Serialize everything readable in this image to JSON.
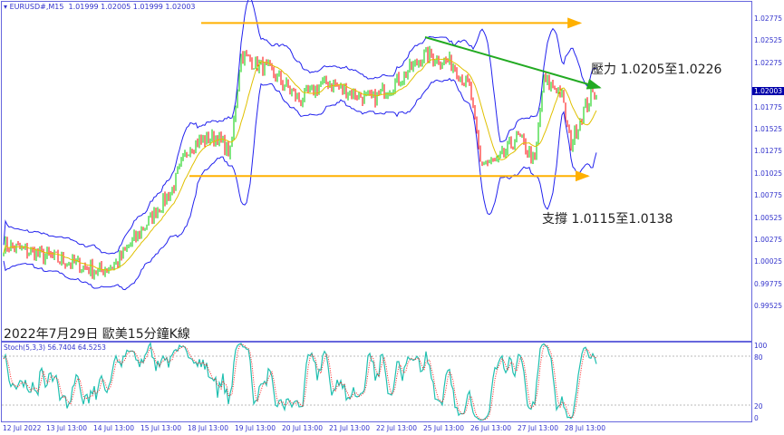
{
  "header": {
    "symbol": "EURUSD#,M15",
    "ohlc": "1.01999 1.02005 1.01999 1.02003"
  },
  "title": "2022年7月29日 歐美15分鐘K線",
  "annotations": {
    "resistance": "壓力 1.0205至1.0226",
    "support": "支撐 1.0115至1.0138"
  },
  "indicator": {
    "label": "Stoch(5,3,3) 56.7404 64.5253",
    "levels": [
      "100",
      "80",
      "20",
      "0"
    ]
  },
  "colors": {
    "bull": "#00cc00",
    "bear": "#ff0000",
    "bands": "#2222ee",
    "levels": "#ffb000",
    "trend": "#22aa22",
    "stoch_main": "#20c0b0",
    "stoch_signal": "#ff2020"
  },
  "chart_data": {
    "type": "candlestick",
    "symbol": "EURUSD#",
    "timeframe": "M15",
    "current_price": "1.02003",
    "y_ticks": [
      "1.02775",
      "1.02525",
      "1.02275",
      "1.01775",
      "1.01525",
      "1.01275",
      "1.01025",
      "1.00775",
      "1.00525",
      "1.00275",
      "1.00025",
      "0.99775",
      "0.99525"
    ],
    "x_ticks": [
      "12 Jul 2022",
      "13 Jul 13:00",
      "14 Jul 13:00",
      "15 Jul 13:00",
      "18 Jul 13:00",
      "19 Jul 13:00",
      "20 Jul 13:00",
      "21 Jul 13:00",
      "22 Jul 13:00",
      "25 Jul 13:00",
      "26 Jul 13:00",
      "27 Jul 13:00",
      "28 Jul 13:00"
    ],
    "ylim": [
      0.9945,
      1.03
    ],
    "approx_path": [
      [
        "12 Jul 15:00",
        1.0022
      ],
      [
        "13 Jul 07:00",
        1.0012
      ],
      [
        "14 Jul 01:00",
        1.0002
      ],
      [
        "14 Jul 15:00",
        0.9992
      ],
      [
        "15 Jul 00:00",
        1.0002
      ],
      [
        "15 Jul 14:00",
        1.0043
      ],
      [
        "18 Jul 04:00",
        1.0084
      ],
      [
        "18 Jul 13:00",
        1.0135
      ],
      [
        "19 Jul 03:00",
        1.0145
      ],
      [
        "19 Jul 10:00",
        1.0125
      ],
      [
        "19 Jul 15:00",
        1.0237
      ],
      [
        "20 Jul 07:00",
        1.0217
      ],
      [
        "20 Jul 21:00",
        1.0186
      ],
      [
        "21 Jul 11:00",
        1.0207
      ],
      [
        "21 Jul 20:00",
        1.0197
      ],
      [
        "22 Jul 10:00",
        1.0186
      ],
      [
        "22 Jul 23:00",
        1.0207
      ],
      [
        "25 Jul 13:00",
        1.0237
      ],
      [
        "26 Jul 03:00",
        1.0227
      ],
      [
        "26 Jul 12:00",
        1.0197
      ],
      [
        "26 Jul 17:00",
        1.0115
      ],
      [
        "27 Jul 02:00",
        1.0115
      ],
      [
        "27 Jul 12:00",
        1.0145
      ],
      [
        "27 Jul 21:00",
        1.0115
      ],
      [
        "28 Jul 01:00",
        1.0207
      ],
      [
        "28 Jul 10:00",
        1.0197
      ],
      [
        "28 Jul 15:00",
        1.0135
      ],
      [
        "28 Jul 22:00",
        1.0176
      ],
      [
        "29 Jul 05:00",
        1.02
      ]
    ],
    "lines": [
      {
        "kind": "horizontal",
        "price": 1.0273,
        "from": "18 Jul 19:00",
        "to": "28 Jul 20:00",
        "color": "#ffb000"
      },
      {
        "kind": "horizontal",
        "price": 1.01,
        "from": "18 Jul 13:00",
        "to": "29 Jul 00:00",
        "color": "#ffb000"
      },
      {
        "kind": "trend",
        "from": [
          "25 Jul 13:00",
          1.0257
        ],
        "to": [
          "29 Jul 06:00",
          1.02
        ],
        "color": "#22aa22"
      }
    ],
    "stochastic": {
      "k_period": 5,
      "d_period": 3,
      "slowing": 3,
      "main": 56.7404,
      "signal": 64.5253,
      "levels": [
        80,
        20
      ],
      "ylim": [
        0,
        100
      ]
    }
  }
}
